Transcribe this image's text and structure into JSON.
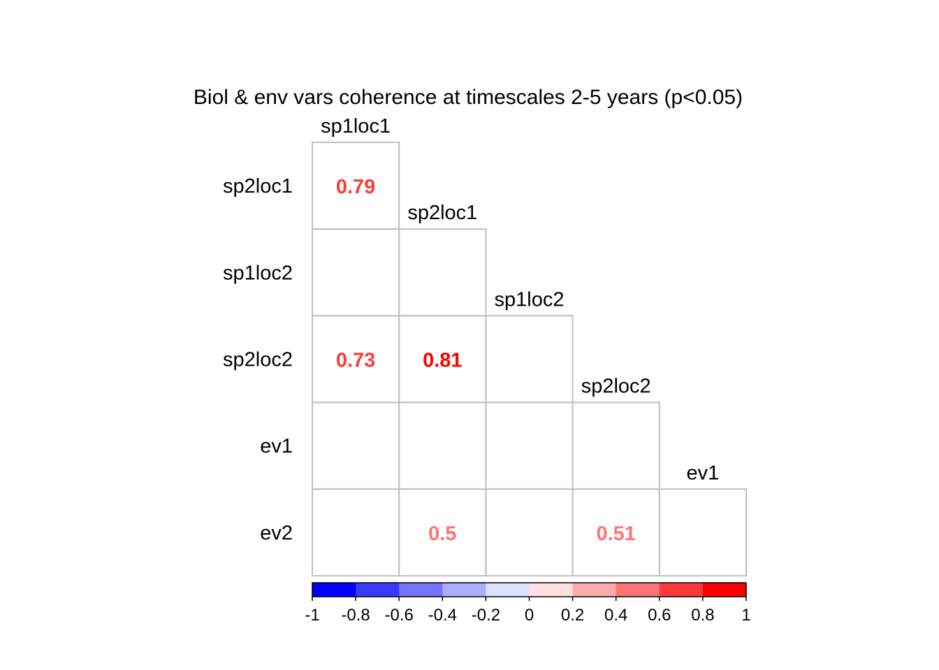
{
  "chart_data": {
    "type": "heatmap",
    "title": "Biol & env vars coherence at timescales 2-5 years (p<0.05)",
    "column_labels": [
      "sp1loc1",
      "sp2loc1",
      "sp1loc2",
      "sp2loc2",
      "ev1"
    ],
    "row_labels": [
      "sp2loc1",
      "sp1loc2",
      "sp2loc2",
      "ev1",
      "ev2"
    ],
    "cells": [
      {
        "row": 0,
        "col": 0,
        "value": 0.79,
        "label": "0.79"
      },
      {
        "row": 2,
        "col": 0,
        "value": 0.73,
        "label": "0.73"
      },
      {
        "row": 2,
        "col": 1,
        "value": 0.81,
        "label": "0.81"
      },
      {
        "row": 4,
        "col": 1,
        "value": 0.5,
        "label": "0.5"
      },
      {
        "row": 4,
        "col": 3,
        "value": 0.51,
        "label": "0.51"
      }
    ],
    "colorbar": {
      "range": [
        -1,
        1
      ],
      "tick_labels": [
        "-1",
        "-0.8",
        "-0.6",
        "-0.4",
        "-0.2",
        "0",
        "0.2",
        "0.4",
        "0.6",
        "0.8",
        "1"
      ],
      "bins": [
        "#0000FF",
        "#3A3AFF",
        "#7474FF",
        "#ABABFF",
        "#DFDFFF",
        "#FFDFDF",
        "#FFABAB",
        "#FF7474",
        "#FF3A3A",
        "#FF0000"
      ]
    },
    "grid_color": "#C0C0C0",
    "triangle": "lower"
  }
}
